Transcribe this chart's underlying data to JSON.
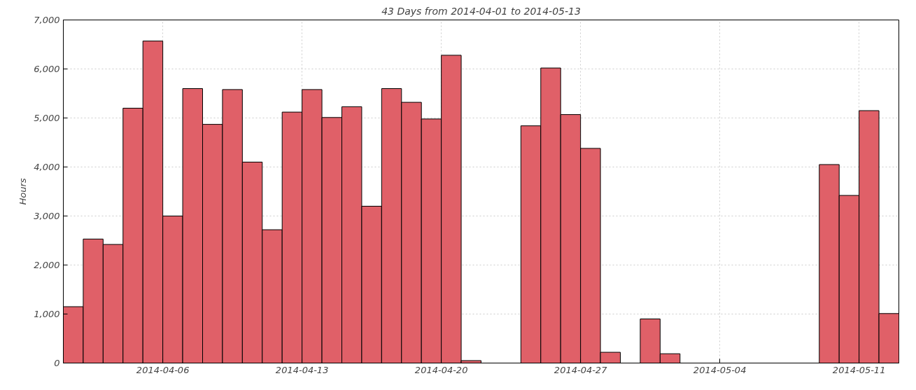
{
  "chart_data": {
    "type": "bar",
    "title": "43 Days from 2014-04-01 to 2014-05-13",
    "ylabel": "Hours",
    "x": [
      "2014-04-01T12:00",
      "2014-04-02T12:00",
      "2014-04-03T12:00",
      "2014-04-04T12:00",
      "2014-04-05T12:00",
      "2014-04-06T12:00",
      "2014-04-07T12:00",
      "2014-04-08T12:00",
      "2014-04-09T12:00",
      "2014-04-10T12:00",
      "2014-04-11T12:00",
      "2014-04-12T12:00",
      "2014-04-13T12:00",
      "2014-04-14T12:00",
      "2014-04-15T12:00",
      "2014-04-16T12:00",
      "2014-04-17T12:00",
      "2014-04-18T12:00",
      "2014-04-19T12:00",
      "2014-04-20T12:00",
      "2014-04-21T12:00",
      "2014-04-22T12:00",
      "2014-04-23T12:00",
      "2014-04-24T12:00",
      "2014-04-25T12:00",
      "2014-04-26T12:00",
      "2014-04-27T12:00",
      "2014-04-28T12:00",
      "2014-04-29T12:00",
      "2014-04-30T12:00",
      "2014-05-01T12:00",
      "2014-05-02T12:00",
      "2014-05-03T12:00",
      "2014-05-04T12:00",
      "2014-05-05T12:00",
      "2014-05-06T12:00",
      "2014-05-07T12:00",
      "2014-05-08T12:00",
      "2014-05-09T12:00",
      "2014-05-10T12:00",
      "2014-05-11T12:00",
      "2014-05-12T12:00"
    ],
    "values": [
      1150,
      2530,
      2420,
      5200,
      6570,
      3000,
      5600,
      4870,
      5580,
      4100,
      2720,
      5120,
      5580,
      5010,
      5230,
      3200,
      5600,
      5320,
      4980,
      6280,
      50,
      null,
      null,
      4840,
      6020,
      5070,
      4380,
      220,
      null,
      900,
      190,
      null,
      null,
      null,
      null,
      null,
      null,
      null,
      4050,
      3420,
      5150,
      1010
    ],
    "color": "#e06068",
    "xlim": [
      "2014-04-01",
      "2014-05-13"
    ],
    "xticks": [
      "2014-04-06",
      "2014-04-13",
      "2014-04-20",
      "2014-04-27",
      "2014-05-04",
      "2014-05-11"
    ],
    "ylim": [
      0,
      7000
    ],
    "yticks": [
      {
        "value": 0,
        "label": "0"
      },
      {
        "value": 1000,
        "label": "1,000"
      },
      {
        "value": 2000,
        "label": "2,000"
      },
      {
        "value": 3000,
        "label": "3,000"
      },
      {
        "value": 4000,
        "label": "4,000"
      },
      {
        "value": 5000,
        "label": "5,000"
      },
      {
        "value": 6000,
        "label": "6,000"
      },
      {
        "value": 7000,
        "label": "7,000"
      }
    ],
    "grid": true
  }
}
